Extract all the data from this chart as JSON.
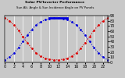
{
  "title": "Sun Alt. Angle & Sun Incidence Angle on PV Panels",
  "title2": "Solar PV/Inverter Performance",
  "x": [
    0,
    1,
    2,
    3,
    4,
    5,
    6,
    7,
    8,
    9,
    10,
    11,
    12,
    13,
    14,
    15,
    16,
    17,
    18,
    19,
    20,
    21,
    22,
    23
  ],
  "sun_altitude": [
    5,
    10,
    18,
    28,
    40,
    52,
    63,
    72,
    78,
    82,
    84,
    85,
    85,
    84,
    82,
    78,
    72,
    63,
    52,
    40,
    28,
    18,
    10,
    5
  ],
  "sun_incidence": [
    85,
    80,
    72,
    62,
    50,
    38,
    27,
    18,
    12,
    8,
    6,
    5,
    5,
    6,
    8,
    12,
    18,
    27,
    38,
    50,
    62,
    72,
    80,
    85
  ],
  "blue_color": "#0000dd",
  "red_color": "#dd0000",
  "bg_color": "#c8c8c8",
  "plot_bg": "#c8c8c8",
  "grid_color": "#ffffff",
  "ylim": [
    0,
    90
  ],
  "yticks_right": [
    0,
    10,
    20,
    30,
    40,
    50,
    60,
    70,
    80,
    90
  ],
  "xlim": [
    0,
    23
  ],
  "xticks": [
    0,
    2,
    4,
    6,
    8,
    10,
    12,
    14,
    16,
    18,
    20,
    22
  ],
  "xticklabels": [
    "0",
    "2",
    "4",
    "6",
    "8",
    "10",
    "12",
    "14",
    "16",
    "18",
    "20",
    "22"
  ],
  "solid_blue_xstart": 10.0,
  "solid_blue_xend": 14.0,
  "solid_blue_y": 85,
  "marker_size": 2.0
}
